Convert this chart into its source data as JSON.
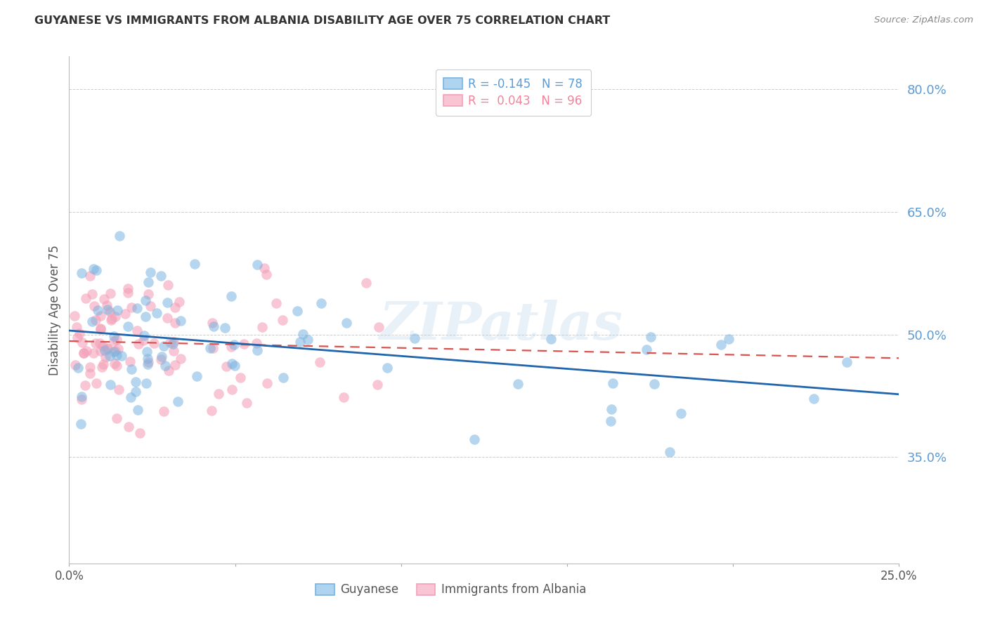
{
  "title": "GUYANESE VS IMMIGRANTS FROM ALBANIA DISABILITY AGE OVER 75 CORRELATION CHART",
  "source": "Source: ZipAtlas.com",
  "ylabel": "Disability Age Over 75",
  "x_min": 0.0,
  "x_max": 0.25,
  "y_min": 0.22,
  "y_max": 0.84,
  "y_ticks": [
    0.35,
    0.5,
    0.65,
    0.8
  ],
  "y_tick_labels": [
    "35.0%",
    "50.0%",
    "65.0%",
    "80.0%"
  ],
  "x_ticks": [
    0.0,
    0.05,
    0.1,
    0.15,
    0.2,
    0.25
  ],
  "x_tick_labels": [
    "0.0%",
    "",
    "",
    "",
    "",
    "25.0%"
  ],
  "legend_entries": [
    {
      "label": "R = -0.145   N = 78",
      "color": "#5b9bd5"
    },
    {
      "label": "R =  0.043   N = 96",
      "color": "#f4829a"
    }
  ],
  "legend_labels_bottom": [
    "Guyanese",
    "Immigrants from Albania"
  ],
  "blue_color": "#7ab3e0",
  "pink_color": "#f4a0b8",
  "trend_blue": "#2166ac",
  "trend_pink": "#d9534f",
  "watermark": "ZIPatlas",
  "background_color": "#ffffff",
  "grid_color": "#cccccc",
  "title_color": "#333333",
  "axis_label_color": "#555555",
  "tick_label_color_y": "#5b9bd5",
  "source_color": "#888888"
}
